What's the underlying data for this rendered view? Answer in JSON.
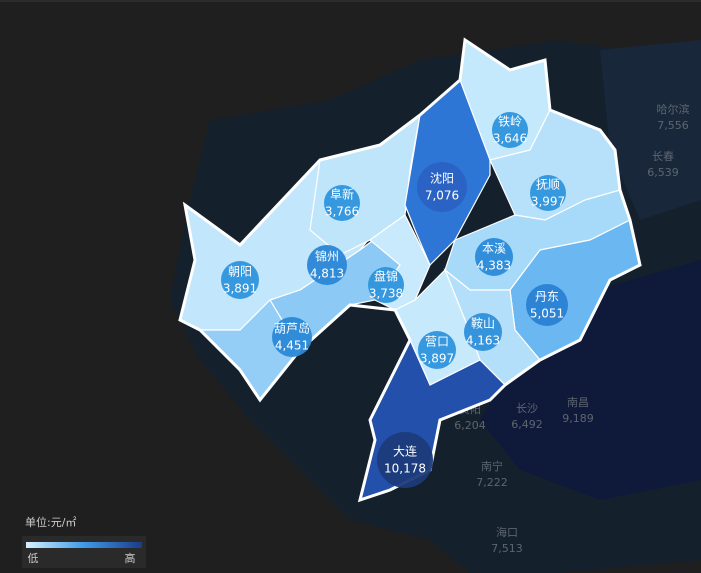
{
  "map": {
    "cities": [
      {
        "name": "铁岭",
        "value": "3,646"
      },
      {
        "name": "沈阳",
        "value": "7,076"
      },
      {
        "name": "阜新",
        "value": "3,766"
      },
      {
        "name": "抚顺",
        "value": "3,997"
      },
      {
        "name": "锦州",
        "value": "4,813"
      },
      {
        "name": "本溪",
        "value": "4,383"
      },
      {
        "name": "朝阳",
        "value": "3,891"
      },
      {
        "name": "盘锦",
        "value": "3,738"
      },
      {
        "name": "丹东",
        "value": "5,051"
      },
      {
        "name": "葫芦岛",
        "value": "4,451"
      },
      {
        "name": "营口",
        "value": "3,897"
      },
      {
        "name": "鞍山",
        "value": "4,163"
      },
      {
        "name": "大连",
        "value": "10,178"
      }
    ],
    "background_cities": [
      {
        "name": "哈尔滨",
        "value": "7,556"
      },
      {
        "name": "长春",
        "value": "6,539"
      },
      {
        "name": "长沙",
        "value": "6,492"
      },
      {
        "name": "南昌",
        "value": "9,189"
      },
      {
        "name": "贵阳",
        "value": "6,204"
      },
      {
        "name": "南宁",
        "value": "7,222"
      },
      {
        "name": "海口",
        "value": "7,513"
      }
    ],
    "legend": {
      "unit": "单位:元/㎡",
      "low": "低",
      "high": "高"
    }
  }
}
